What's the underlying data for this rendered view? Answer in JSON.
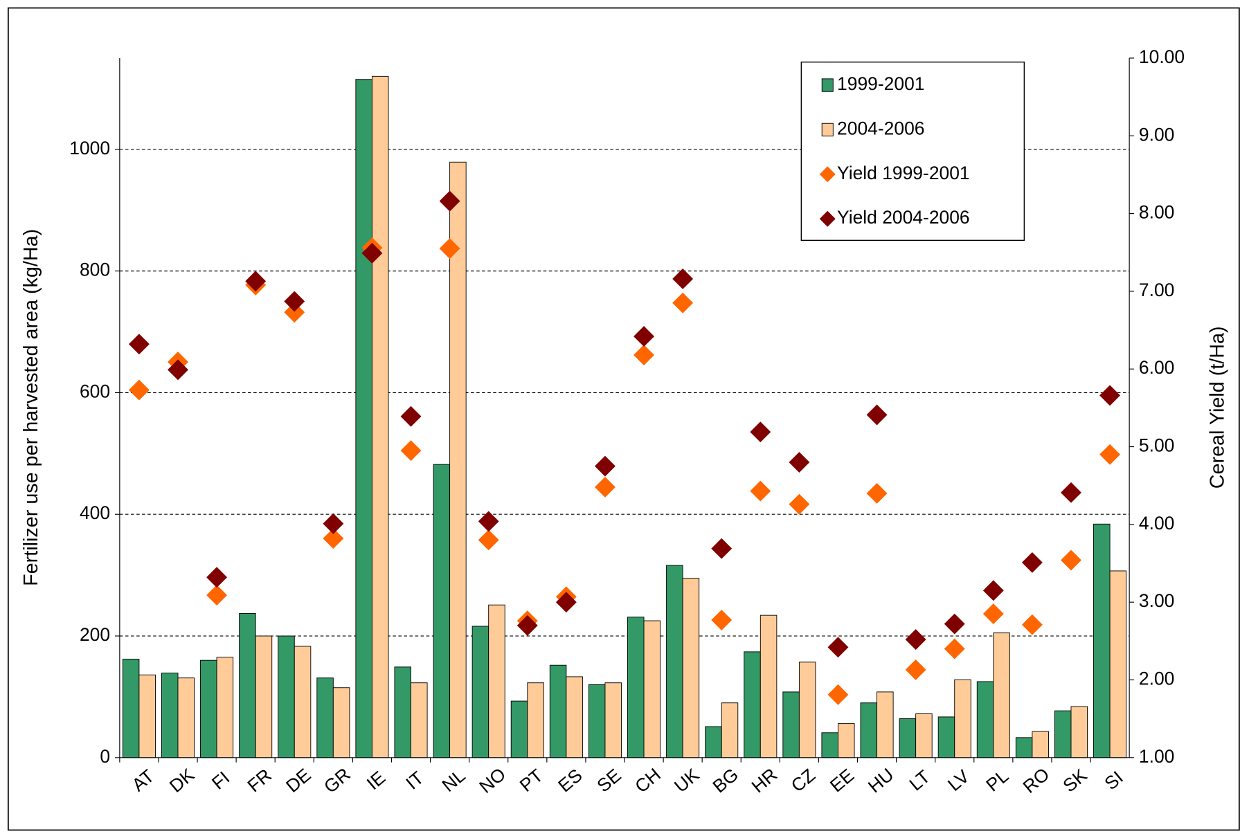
{
  "chart_data": {
    "type": "bar",
    "ylabel": "Fertilizer use per harvested area (kg/Ha)",
    "y2label": "Cereal Yield (t/Ha)",
    "categories": [
      "AT",
      "DK",
      "FI",
      "FR",
      "DE",
      "GR",
      "IE",
      "IT",
      "NL",
      "NO",
      "PT",
      "ES",
      "SE",
      "CH",
      "UK",
      "BG",
      "HR",
      "CZ",
      "EE",
      "HU",
      "LT",
      "LV",
      "PL",
      "RO",
      "SK",
      "SI"
    ],
    "series": [
      {
        "name": "1999-2001",
        "type": "bar",
        "color": "#339966",
        "values": [
          162,
          139,
          160,
          237,
          200,
          131,
          1115,
          149,
          482,
          216,
          93,
          152,
          120,
          231,
          316,
          51,
          174,
          108,
          41,
          90,
          64,
          67,
          125,
          33,
          77,
          384
        ]
      },
      {
        "name": "2004-2006",
        "type": "bar",
        "color": "#ffcc99",
        "values": [
          136,
          131,
          165,
          200,
          183,
          115,
          1120,
          123,
          979,
          251,
          123,
          133,
          123,
          225,
          295,
          90,
          234,
          157,
          56,
          108,
          72,
          128,
          205,
          43,
          84,
          307
        ]
      },
      {
        "name": "Yield 1999-2001",
        "type": "scatter",
        "axis": "y2",
        "color": "#ff6600",
        "values": [
          5.73,
          6.09,
          3.09,
          7.08,
          6.73,
          3.82,
          7.56,
          4.95,
          7.55,
          3.8,
          2.76,
          3.07,
          4.48,
          6.18,
          6.85,
          2.77,
          4.43,
          4.26,
          1.81,
          4.4,
          2.13,
          2.4,
          2.85,
          2.71,
          3.54,
          4.9
        ]
      },
      {
        "name": "Yield 2004-2006",
        "type": "scatter",
        "axis": "y2",
        "color": "#800000",
        "values": [
          6.32,
          5.99,
          3.32,
          7.13,
          6.87,
          4.01,
          7.49,
          5.39,
          8.16,
          4.04,
          2.7,
          3.0,
          4.75,
          6.42,
          7.16,
          3.69,
          5.19,
          4.8,
          2.42,
          5.41,
          2.52,
          2.72,
          3.15,
          3.51,
          4.41,
          5.66
        ]
      }
    ],
    "ylim": [
      0,
      1150
    ],
    "yticks": [
      0,
      200,
      400,
      600,
      800,
      1000
    ],
    "y2lim": [
      1,
      10
    ],
    "y2ticks": [
      {
        "value": 1,
        "label": "1.00"
      },
      {
        "value": 2,
        "label": "2.00"
      },
      {
        "value": 3,
        "label": "3.00"
      },
      {
        "value": 4,
        "label": "4.00"
      },
      {
        "value": 5,
        "label": "5.00"
      },
      {
        "value": 6,
        "label": "6.00"
      },
      {
        "value": 7,
        "label": "7.00"
      },
      {
        "value": 8,
        "label": "8.00"
      },
      {
        "value": 9,
        "label": "9.00"
      },
      {
        "value": 10,
        "label": "10.00"
      }
    ],
    "grid": true,
    "legend": "top-right"
  }
}
